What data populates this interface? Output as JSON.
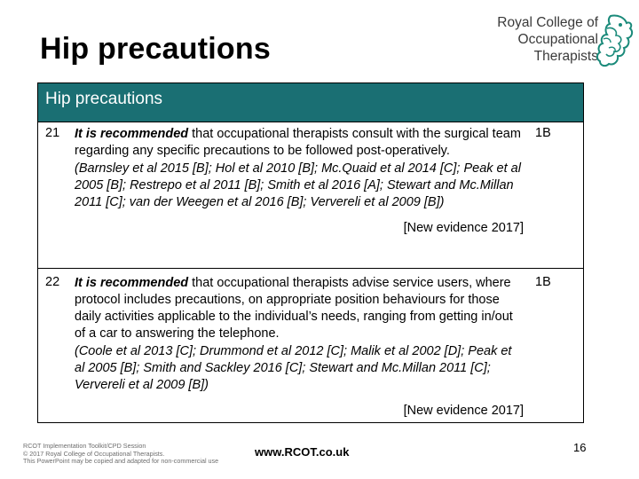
{
  "slide": {
    "title": "Hip precautions",
    "logo": {
      "lines": [
        "Royal College of",
        "Occupational",
        "Therapists"
      ],
      "icon": "rcot-crest-icon"
    }
  },
  "table": {
    "header": "Hip precautions",
    "rows": [
      {
        "number": "21",
        "emphasis": "It is recommended",
        "text": " that occupational therapists consult with the surgical team regarding any specific precautions to be followed post-operatively.",
        "references": "(Barnsley et al 2015 [B]; Hol et al 2010 [B]; Mc.Quaid et al 2014 [C]; Peak et al 2005 [B]; Restrepo et al 2011 [B]; Smith et al 2016 [A]; Stewart and Mc.Millan 2011 [C]; van der Weegen et al 2016 [B]; Ververeli et al 2009 [B])",
        "evidence": "[New evidence 2017]",
        "grade": "1B"
      },
      {
        "number": "22",
        "emphasis": "It is recommended",
        "text": " that occupational therapists advise service users, where protocol includes precautions, on appropriate position behaviours for those daily activities applicable to the individual’s needs, ranging from getting in/out of a car to answering the telephone.",
        "references": "(Coole et al 2013 [C]; Drummond et al 2012 [C]; Malik et al 2002 [D]; Peak et al 2005 [B]; Smith and Sackley 2016 [C]; Stewart and Mc.Millan 2011 [C]; Ververeli et al 2009 [B])",
        "evidence": "[New evidence 2017]",
        "grade": "1B"
      }
    ]
  },
  "footer": {
    "lines": [
      "RCOT Implementation Toolkit/CPD Session",
      "© 2017 Royal College of Occupational Therapists.",
      "This PowerPoint may be copied and adapted for non-commercial use"
    ],
    "url": "www.RCOT.co.uk",
    "page_number": "16"
  },
  "colors": {
    "header_bg": "#1a6f73",
    "logo_accent": "#1a8a7a"
  }
}
